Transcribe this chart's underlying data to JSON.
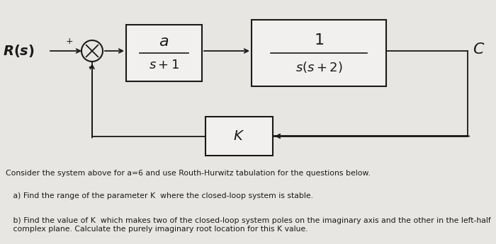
{
  "bg_color": "#e8e6e3",
  "text_color": "#1a1a1a",
  "box_facecolor": "#f2f0ee",
  "box_edgecolor": "#1a1a1a",
  "Rs_label": "$\\mathbf{R(s)}$",
  "C_label": "$\\mathit{C}$",
  "block1_num": "$a$",
  "block1_den": "$s+1$",
  "block2_num": "$1$",
  "block2_den": "$s(s+2)$",
  "feedback_label": "$K$",
  "question_intro": "Consider the system above for a=6 and use Routh-Hurwitz tabulation for the questions below.",
  "question_a": "   a) Find the range of the parameter​ K  where the closed-loop system is stable.",
  "question_b": "   b) Find the value of K  which makes two of the closed-loop system poles on the imaginary axis and the other in the left-half\n   complex plane. Calculate the purely imaginary root location for this K value."
}
